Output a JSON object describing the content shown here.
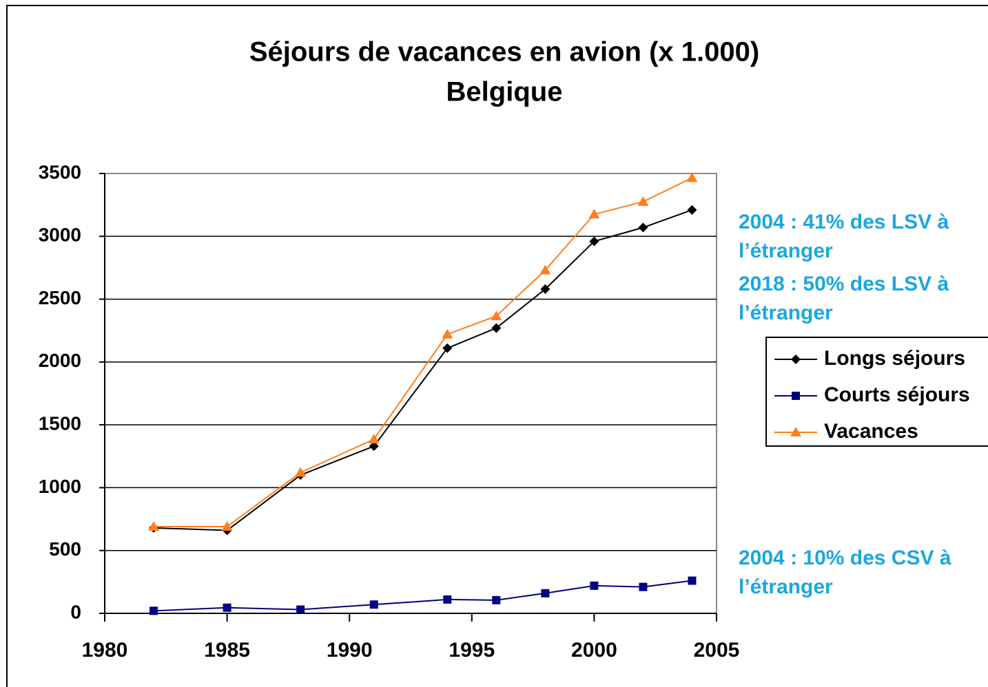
{
  "chart_data": {
    "type": "line",
    "title": "Séjours de vacances en avion (x 1.000)",
    "subtitle": "Belgique",
    "x": [
      1982,
      1985,
      1988,
      1991,
      1994,
      1996,
      1998,
      2000,
      2002,
      2004
    ],
    "series": [
      {
        "name": "Longs séjours",
        "color": "#000000",
        "marker": "diamond",
        "values": [
          680,
          660,
          1100,
          1330,
          2110,
          2270,
          2580,
          2960,
          3070,
          3210
        ]
      },
      {
        "name": "Courts séjours",
        "color": "#000080",
        "marker": "square",
        "values": [
          20,
          45,
          30,
          70,
          110,
          105,
          160,
          220,
          210,
          260
        ]
      },
      {
        "name": "Vacances",
        "color": "#ff7f1e",
        "marker": "triangle",
        "values": [
          690,
          690,
          1120,
          1385,
          2220,
          2365,
          2730,
          3175,
          3275,
          3465
        ]
      }
    ],
    "xlim": [
      1980,
      2005
    ],
    "xticks": [
      1980,
      1985,
      1990,
      1995,
      2000,
      2005
    ],
    "ylim": [
      0,
      3500
    ],
    "yticks": [
      0,
      500,
      1000,
      1500,
      2000,
      2500,
      3000,
      3500
    ],
    "grid": true,
    "legend": "right",
    "annotations": [
      "2004 : 41% des LSV à l’étranger",
      "2018 : 50% des LSV à l’étranger",
      "2004 : 10% des CSV à l’étranger"
    ]
  }
}
